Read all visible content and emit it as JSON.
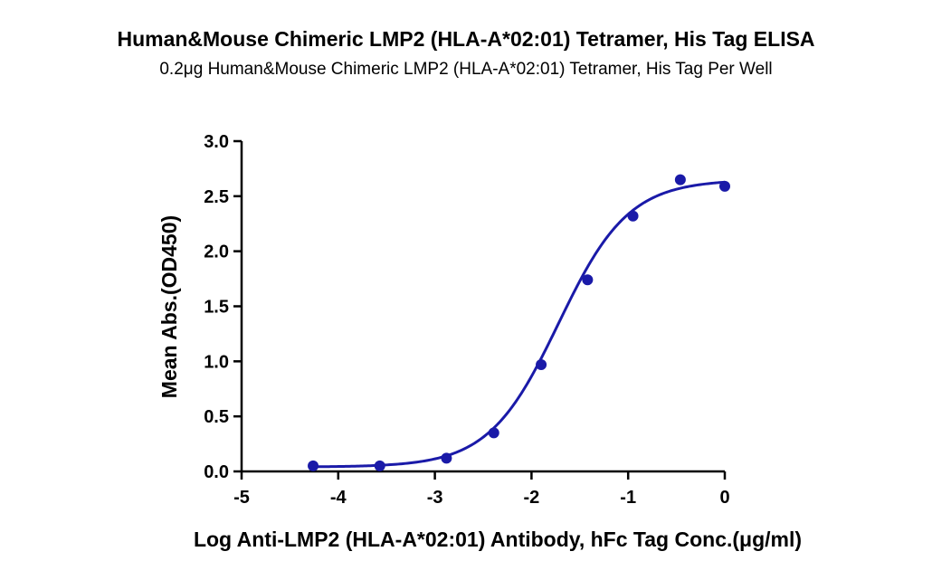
{
  "chart_data": {
    "type": "scatter",
    "title": "Human&Mouse Chimeric LMP2 (HLA-A*02:01) Tetramer, His Tag ELISA",
    "subtitle": "0.2μg Human&Mouse Chimeric LMP2 (HLA-A*02:01) Tetramer, His Tag Per Well",
    "xlabel": "Log Anti-LMP2 (HLA-A*02:01) Antibody, hFc Tag Conc.(μg/ml)",
    "ylabel": "Mean Abs.(OD450)",
    "xlim": [
      -5,
      0
    ],
    "ylim": [
      0,
      3.0
    ],
    "x_ticks": [
      "-5",
      "-4",
      "-3",
      "-2",
      "-1",
      "0"
    ],
    "y_ticks": [
      "0.0",
      "0.5",
      "1.0",
      "1.5",
      "2.0",
      "2.5",
      "3.0"
    ],
    "grid": false,
    "series": [
      {
        "color": "#1a1aa8",
        "points": [
          {
            "x": -4.26,
            "y": 0.05
          },
          {
            "x": -3.57,
            "y": 0.05
          },
          {
            "x": -2.88,
            "y": 0.12
          },
          {
            "x": -2.39,
            "y": 0.35
          },
          {
            "x": -1.9,
            "y": 0.97
          },
          {
            "x": -1.42,
            "y": 1.74
          },
          {
            "x": -0.95,
            "y": 2.32
          },
          {
            "x": -0.46,
            "y": 2.65
          },
          {
            "x": 0.0,
            "y": 2.59
          }
        ],
        "fit": {
          "model": "4PL",
          "bottom": 0.04,
          "top": 2.65,
          "logEC50": -1.72,
          "hill": 1.2
        }
      }
    ]
  }
}
